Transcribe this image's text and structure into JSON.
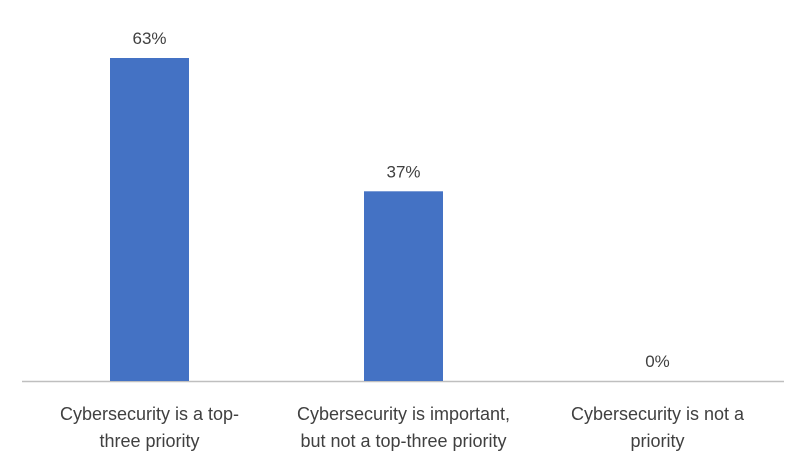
{
  "chart_data": {
    "type": "bar",
    "categories": [
      [
        "Cybersecurity is a top-",
        "three priority"
      ],
      [
        "Cybersecurity is important,",
        "but not a top-three priority"
      ],
      [
        "Cybersecurity is not a",
        "priority"
      ]
    ],
    "values": [
      63,
      37,
      0
    ],
    "data_labels": [
      "63%",
      "37%",
      "0%"
    ],
    "ylim": [
      0,
      70
    ],
    "grid": false,
    "legend": "none",
    "bar_color": "#4472C4",
    "axis_color": "#BFBFBF",
    "text_color": "#404040"
  }
}
